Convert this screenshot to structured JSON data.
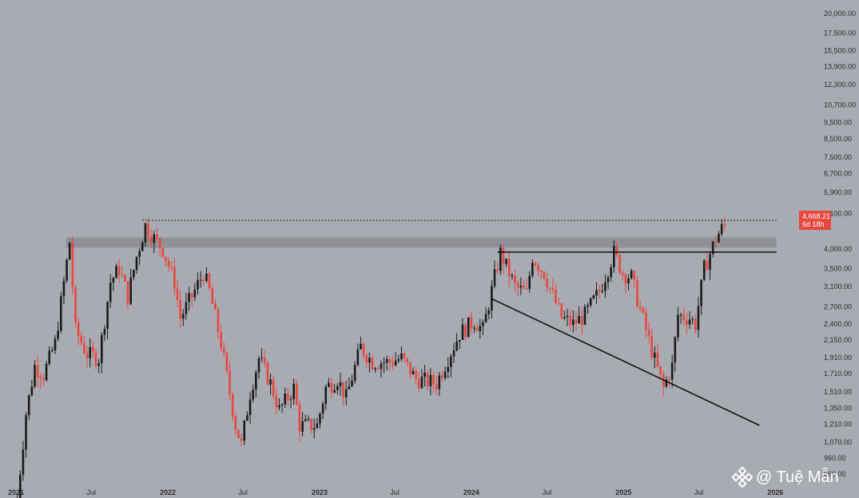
{
  "chart_data": {
    "type": "candlestick",
    "title": "",
    "xlabel": "",
    "ylabel": "",
    "y_scale": "log",
    "ylim": [
      815,
      21000
    ],
    "x_range": [
      "2020-12-28",
      "2026-02-08"
    ],
    "y_ticks": [
      "20,000.00",
      "17,500.00",
      "15,500.00",
      "13,900.00",
      "12,300.00",
      "10,700.00",
      "9,500.00",
      "8,500.00",
      "7,500.00",
      "6,700.00",
      "5,900.00",
      "5,100.00",
      "4,000.00",
      "3,500.00",
      "3,100.00",
      "2,700.00",
      "2,400.00",
      "2,150.00",
      "1,910.00",
      "1,710.00",
      "1,510.00",
      "1,350.00",
      "1,210.00",
      "1,070.00",
      "960.00",
      "860.00"
    ],
    "y_tick_values": [
      20000,
      17500,
      15500,
      13900,
      12300,
      10700,
      9500,
      8500,
      7500,
      6700,
      5900,
      5100,
      4000,
      3500,
      3100,
      2700,
      2400,
      2150,
      1910,
      1710,
      1510,
      1350,
      1210,
      1070,
      960,
      860
    ],
    "x_ticks": [
      {
        "label": "2021",
        "date": "2021-01-01",
        "year": true
      },
      {
        "label": "Jul",
        "date": "2021-07-01",
        "year": false
      },
      {
        "label": "2022",
        "date": "2022-01-01",
        "year": true
      },
      {
        "label": "Jul",
        "date": "2022-07-01",
        "year": false
      },
      {
        "label": "2023",
        "date": "2023-01-01",
        "year": true
      },
      {
        "label": "Jul",
        "date": "2023-07-01",
        "year": false
      },
      {
        "label": "2024",
        "date": "2024-01-01",
        "year": true
      },
      {
        "label": "Jul",
        "date": "2024-07-01",
        "year": false
      },
      {
        "label": "2025",
        "date": "2025-01-01",
        "year": true
      },
      {
        "label": "Jul",
        "date": "2025-07-01",
        "year": false
      },
      {
        "label": "2026",
        "date": "2026-01-01",
        "year": true
      }
    ],
    "price_anchors": [
      [
        "2021-01-04",
        730
      ],
      [
        "2021-01-25",
        1300
      ],
      [
        "2021-02-15",
        1800
      ],
      [
        "2021-03-08",
        1700
      ],
      [
        "2021-04-05",
        2100
      ],
      [
        "2021-05-10",
        4200
      ],
      [
        "2021-05-24",
        2300
      ],
      [
        "2021-06-21",
        1950
      ],
      [
        "2021-07-19",
        1900
      ],
      [
        "2021-08-16",
        3200
      ],
      [
        "2021-09-06",
        3500
      ],
      [
        "2021-09-27",
        2900
      ],
      [
        "2021-10-18",
        3800
      ],
      [
        "2021-11-08",
        4700
      ],
      [
        "2021-11-29",
        4300
      ],
      [
        "2021-12-20",
        4000
      ],
      [
        "2022-01-17",
        3200
      ],
      [
        "2022-01-31",
        2500
      ],
      [
        "2022-02-28",
        2900
      ],
      [
        "2022-03-28",
        3400
      ],
      [
        "2022-04-11",
        3000
      ],
      [
        "2022-05-09",
        2100
      ],
      [
        "2022-06-13",
        1200
      ],
      [
        "2022-06-27",
        1050
      ],
      [
        "2022-07-18",
        1500
      ],
      [
        "2022-08-08",
        1900
      ],
      [
        "2022-09-05",
        1600
      ],
      [
        "2022-09-26",
        1330
      ],
      [
        "2022-10-31",
        1550
      ],
      [
        "2022-11-14",
        1200
      ],
      [
        "2022-12-26",
        1200
      ],
      [
        "2023-01-16",
        1550
      ],
      [
        "2023-02-13",
        1650
      ],
      [
        "2023-03-06",
        1450
      ],
      [
        "2023-04-10",
        2050
      ],
      [
        "2023-05-08",
        1850
      ],
      [
        "2023-06-19",
        1850
      ],
      [
        "2023-07-17",
        1900
      ],
      [
        "2023-08-21",
        1650
      ],
      [
        "2023-10-09",
        1600
      ],
      [
        "2023-11-06",
        1900
      ],
      [
        "2023-12-04",
        2250
      ],
      [
        "2024-01-08",
        2450
      ],
      [
        "2024-01-29",
        2300
      ],
      [
        "2024-02-26",
        3300
      ],
      [
        "2024-03-11",
        3900
      ],
      [
        "2024-04-15",
        3100
      ],
      [
        "2024-05-13",
        2950
      ],
      [
        "2024-05-27",
        3800
      ],
      [
        "2024-06-24",
        3400
      ],
      [
        "2024-08-05",
        2500
      ],
      [
        "2024-09-02",
        2400
      ],
      [
        "2024-09-30",
        2550
      ],
      [
        "2024-11-04",
        3000
      ],
      [
        "2024-12-09",
        3900
      ],
      [
        "2024-12-30",
        3400
      ],
      [
        "2025-01-20",
        3300
      ],
      [
        "2025-02-10",
        2650
      ],
      [
        "2025-03-10",
        2000
      ],
      [
        "2025-04-07",
        1550
      ],
      [
        "2025-04-28",
        1800
      ],
      [
        "2025-05-12",
        2550
      ],
      [
        "2025-06-09",
        2500
      ],
      [
        "2025-06-23",
        2400
      ],
      [
        "2025-07-14",
        3500
      ],
      [
        "2025-08-11",
        4300
      ],
      [
        "2025-08-25",
        4600
      ],
      [
        "2025-09-01",
        4668
      ]
    ],
    "resistance_zone": {
      "low": 4040,
      "high": 4330,
      "x_start": "2021-05-01",
      "x_end": "2026-01-04"
    },
    "support_line": {
      "y": 3920,
      "x_start": "2024-03-04",
      "x_end": "2026-01-04"
    },
    "trendline": {
      "points": [
        [
          "2024-02-19",
          2850
        ],
        [
          "2025-11-24",
          1200
        ]
      ]
    },
    "ath_dotted_line": {
      "y": 4868,
      "x_start": "2021-11-01",
      "x_end": "2026-01-04"
    },
    "last_price": {
      "value": 4668.21,
      "label": "4,668.21",
      "countdown": "6d 18h"
    },
    "colors": {
      "up": "#1b1b1b",
      "down": "#e8473d",
      "background": "#a9abb3",
      "zone": "#8c8e94",
      "line": "#111111"
    }
  },
  "watermark": {
    "text": "@ Tuệ Mẫn",
    "icon": "binance-logo-icon"
  }
}
